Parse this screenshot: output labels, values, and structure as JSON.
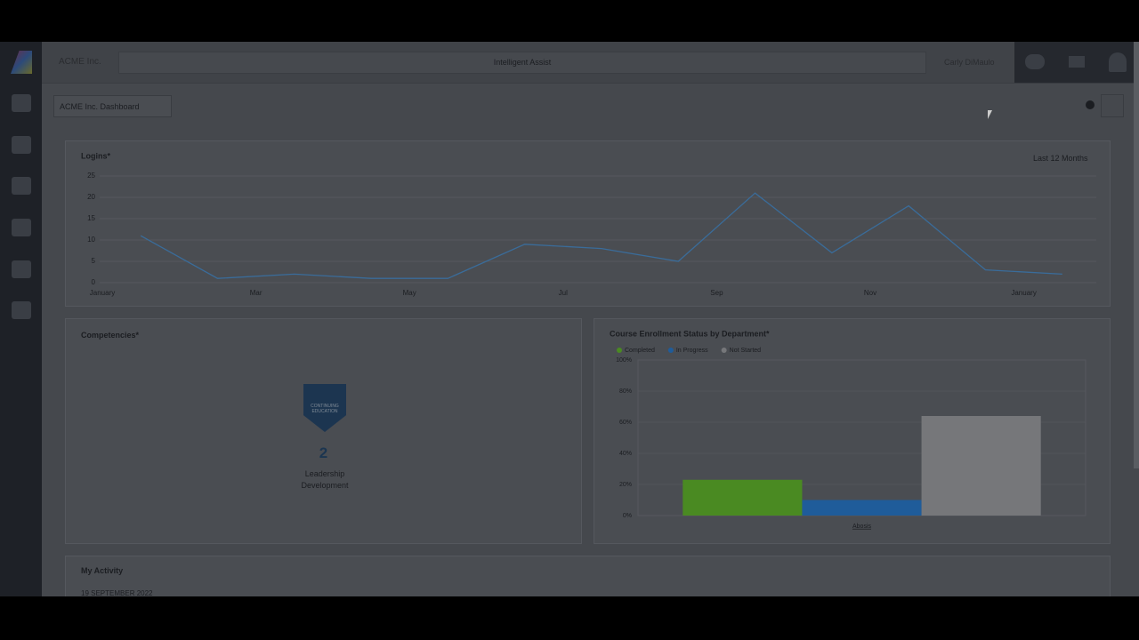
{
  "header": {
    "company": "ACME Inc.",
    "search_placeholder": "Intelligent Assist",
    "user": "Carly DiMaulo"
  },
  "dashboard_select": "ACME Inc. Dashboard",
  "logins_card": {
    "range": "Last 12 Months"
  },
  "competencies": {
    "title": "Competencies*",
    "badge_text": "CONTINUING EDUCATION",
    "count": "2",
    "label": "Leadership Development"
  },
  "activity": {
    "title": "My Activity",
    "date": "19 SEPTEMBER 2022"
  },
  "chart_data": [
    {
      "type": "line",
      "title": "Logins*",
      "categories": [
        "January",
        null,
        "Mar",
        null,
        "May",
        null,
        "Jul",
        null,
        "Sep",
        null,
        "Nov",
        null,
        "January"
      ],
      "values": [
        11,
        1,
        2,
        1,
        1,
        9,
        8,
        5,
        21,
        7,
        18,
        3,
        2
      ],
      "color": "#3a6c9a",
      "ylim": [
        0,
        25
      ],
      "yticks": [
        0,
        5,
        10,
        15,
        20,
        25
      ],
      "grid": true
    },
    {
      "type": "bar",
      "title": "Course Enrollment Status by Department*",
      "categories": [
        "Abosis"
      ],
      "series": [
        {
          "name": "Completed",
          "color": "#4a8a22",
          "values": [
            23
          ]
        },
        {
          "name": "In Progress",
          "color": "#1f5c9a",
          "values": [
            10
          ]
        },
        {
          "name": "Not Started",
          "color": "#76777a",
          "values": [
            64
          ]
        }
      ],
      "ylim": [
        0,
        100
      ],
      "yticks": [
        {
          "value": 0,
          "label": "0%"
        },
        {
          "value": 20,
          "label": "20%"
        },
        {
          "value": 40,
          "label": "40%"
        },
        {
          "value": 60,
          "label": "60%"
        },
        {
          "value": 80,
          "label": "80%"
        },
        {
          "value": 100,
          "label": "100%"
        }
      ],
      "grid": true,
      "legend": "top-left"
    }
  ]
}
